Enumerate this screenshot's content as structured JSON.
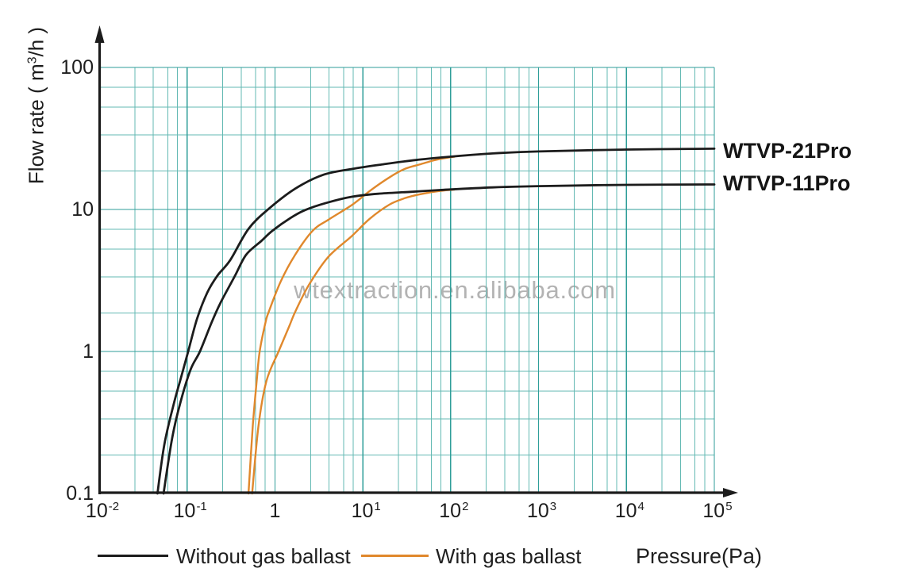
{
  "watermark": "wtextraction.en.alibaba.com",
  "chart_data": {
    "type": "line",
    "title": "",
    "xlabel": "Pressure(Pa)",
    "ylabel": "Flow rate ( m3/h )",
    "ylabel_parts": {
      "pre": "Flow rate ( m",
      "sup": "3",
      "post": "/h )"
    },
    "x_axis": {
      "scale": "log",
      "min": 0.01,
      "max": 100000,
      "ticks": [
        {
          "base": "10",
          "sup": "-2"
        },
        {
          "base": "10",
          "sup": "-1"
        },
        {
          "base": "1",
          "sup": ""
        },
        {
          "base": "10",
          "sup": "1"
        },
        {
          "base": "10",
          "sup": "2"
        },
        {
          "base": "10",
          "sup": "3"
        },
        {
          "base": "10",
          "sup": "4"
        },
        {
          "base": "10",
          "sup": "5"
        }
      ]
    },
    "y_axis": {
      "scale": "log",
      "min": 0.1,
      "max": 100,
      "ticks": [
        "100",
        "10",
        "1",
        "0.1"
      ]
    },
    "grid": {
      "major_color": "#2f9e99",
      "minor_color": "#63b9b3"
    },
    "colors": {
      "without_gas_ballast": "#1c1c1c",
      "with_gas_ballast": "#e0882c"
    },
    "series": [
      {
        "name": "WTVP-21Pro",
        "gas_ballast": false,
        "color": "#1c1c1c",
        "points": [
          [
            0.046,
            0.1
          ],
          [
            0.055,
            0.22
          ],
          [
            0.07,
            0.42
          ],
          [
            0.085,
            0.65
          ],
          [
            0.103,
            1.0
          ],
          [
            0.13,
            1.7
          ],
          [
            0.17,
            2.6
          ],
          [
            0.22,
            3.4
          ],
          [
            0.31,
            4.4
          ],
          [
            0.5,
            7.3
          ],
          [
            0.85,
            10.1
          ],
          [
            1.7,
            14.0
          ],
          [
            3.6,
            17.6
          ],
          [
            8,
            19.4
          ],
          [
            17,
            20.8
          ],
          [
            40,
            22.3
          ],
          [
            90,
            23.4
          ],
          [
            300,
            24.8
          ],
          [
            1000,
            25.6
          ],
          [
            10000,
            26.4
          ],
          [
            100000,
            26.8
          ]
        ]
      },
      {
        "name": "WTVP-11Pro",
        "gas_ballast": false,
        "color": "#1c1c1c",
        "points": [
          [
            0.054,
            0.1
          ],
          [
            0.068,
            0.25
          ],
          [
            0.085,
            0.45
          ],
          [
            0.11,
            0.75
          ],
          [
            0.14,
            1.0
          ],
          [
            0.19,
            1.6
          ],
          [
            0.24,
            2.2
          ],
          [
            0.35,
            3.4
          ],
          [
            0.47,
            4.8
          ],
          [
            0.7,
            6.0
          ],
          [
            0.94,
            7.1
          ],
          [
            1.5,
            8.7
          ],
          [
            2.2,
            9.9
          ],
          [
            4,
            11.2
          ],
          [
            7.6,
            12.3
          ],
          [
            15,
            12.9
          ],
          [
            35,
            13.3
          ],
          [
            75,
            13.7
          ],
          [
            300,
            14.3
          ],
          [
            1000,
            14.6
          ],
          [
            10000,
            14.9
          ],
          [
            100000,
            15.0
          ]
        ]
      },
      {
        "name": "WTVP-21Pro",
        "gas_ballast": true,
        "color": "#e0882c",
        "points": [
          [
            0.5,
            0.1
          ],
          [
            0.56,
            0.3
          ],
          [
            0.62,
            0.62
          ],
          [
            0.67,
            1.0
          ],
          [
            0.78,
            1.6
          ],
          [
            0.85,
            1.9
          ],
          [
            1.16,
            3.1
          ],
          [
            1.7,
            4.8
          ],
          [
            2.7,
            7.1
          ],
          [
            4.1,
            8.5
          ],
          [
            7.6,
            10.8
          ],
          [
            12,
            13.5
          ],
          [
            20,
            16.8
          ],
          [
            30,
            19.3
          ],
          [
            45,
            20.8
          ],
          [
            65,
            22.2
          ],
          [
            90,
            23.1
          ],
          [
            110,
            23.5
          ]
        ]
      },
      {
        "name": "WTVP-11Pro",
        "gas_ballast": true,
        "color": "#e0882c",
        "points": [
          [
            0.55,
            0.1
          ],
          [
            0.65,
            0.3
          ],
          [
            0.8,
            0.62
          ],
          [
            1.1,
            1.0
          ],
          [
            1.45,
            1.5
          ],
          [
            1.7,
            1.9
          ],
          [
            2.4,
            2.9
          ],
          [
            4,
            4.6
          ],
          [
            7.5,
            6.5
          ],
          [
            12,
            8.6
          ],
          [
            20,
            10.8
          ],
          [
            30,
            12.0
          ],
          [
            45,
            12.8
          ],
          [
            75,
            13.5
          ],
          [
            110,
            13.8
          ]
        ]
      }
    ],
    "curve_labels": [
      {
        "text": "WTVP-21Pro"
      },
      {
        "text": "WTVP-11Pro"
      }
    ],
    "legend": [
      {
        "label": "Without gas ballast",
        "color": "#1c1c1c"
      },
      {
        "label": "With gas ballast",
        "color": "#e0882c"
      }
    ]
  }
}
